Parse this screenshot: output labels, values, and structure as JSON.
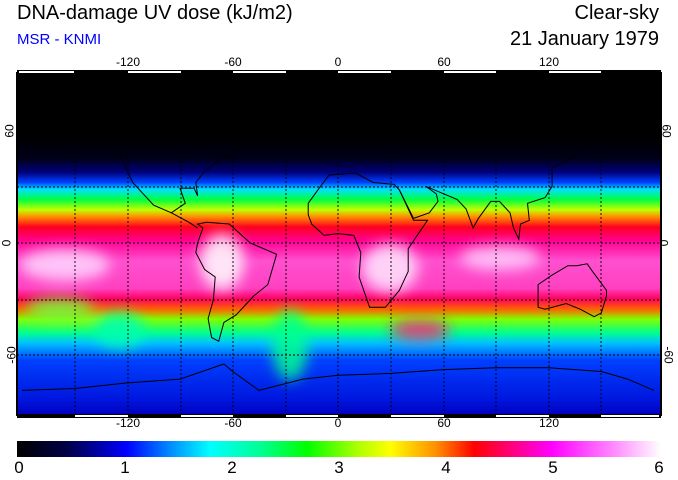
{
  "header": {
    "title": "DNA-damage UV dose (kJ/m2)",
    "source": "MSR - KNMI",
    "condition": "Clear-sky",
    "date": "21 January 1979"
  },
  "map": {
    "lon_ticks": [
      "-120",
      "-60",
      "0",
      "60",
      "120"
    ],
    "lat_ticks_left": [
      "60",
      "0",
      "-60"
    ],
    "lat_ticks_right": [
      "60",
      "0",
      "-60"
    ],
    "gridline_spacing_deg": 30
  },
  "colorbar": {
    "ticks": [
      "0",
      "1",
      "2",
      "3",
      "4",
      "5",
      "6"
    ],
    "range": [
      0,
      6
    ],
    "colors": [
      "#000000",
      "#0000ff",
      "#00ffff",
      "#00ff00",
      "#ffff00",
      "#ff0000",
      "#ff00ff",
      "#ffffff"
    ]
  }
}
